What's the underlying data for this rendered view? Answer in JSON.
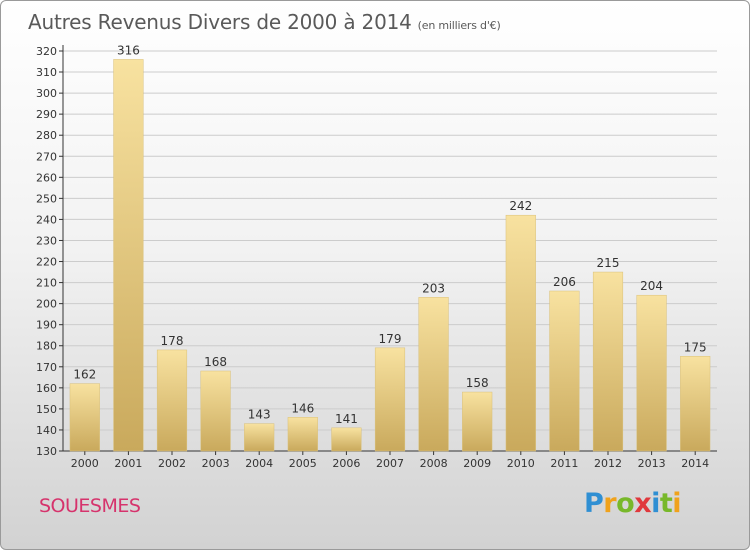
{
  "title": "Autres Revenus Divers de 2000 à 2014",
  "subtitle": "(en milliers d'€)",
  "commune": "SOUESMES",
  "logo": "Proxiti",
  "logo_letters": [
    "P",
    "r",
    "o",
    "x",
    "i",
    "t",
    "i"
  ],
  "colors": {
    "bar_light": "#f8e2a0",
    "bar_dark": "#c9a95c",
    "grid": "#cccccc",
    "title": "#5a5a5a",
    "commune": "#d6336c"
  },
  "chart_data": {
    "type": "bar",
    "title": "Autres Revenus Divers de 2000 à 2014",
    "subtitle": "(en milliers d'€)",
    "categories": [
      "2000",
      "2001",
      "2002",
      "2003",
      "2004",
      "2005",
      "2006",
      "2007",
      "2008",
      "2009",
      "2010",
      "2011",
      "2012",
      "2013",
      "2014"
    ],
    "values": [
      162,
      316,
      178,
      168,
      143,
      146,
      141,
      179,
      203,
      158,
      242,
      206,
      215,
      204,
      175
    ],
    "yticks": [
      130,
      140,
      150,
      160,
      170,
      180,
      190,
      200,
      210,
      220,
      230,
      240,
      250,
      260,
      270,
      280,
      290,
      300,
      310,
      320
    ],
    "ylim": [
      130,
      320
    ],
    "grid": true,
    "data_labels": true
  }
}
